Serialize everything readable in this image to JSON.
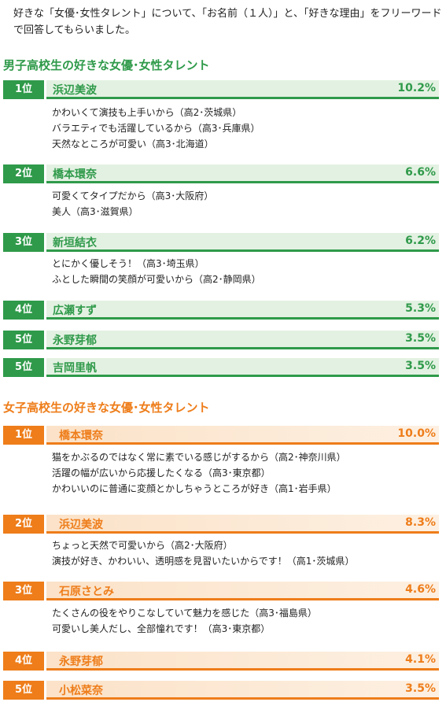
{
  "intro": "好きな「女優･女性タレント」について、「お名前（１人）」と、「好きな理由」をフリーワードで回答してもらいました。",
  "boys": {
    "title": "男子高校生の好きな女優･女性タレント",
    "ranks": [
      {
        "rank": "1位",
        "name": "浜辺美波",
        "percent": "10.2%",
        "comments": [
          "かわいくて演技も上手いから（高2･茨城県）",
          "バラエティでも活躍しているから（高3･兵庫県）",
          "天然なところが可愛い（高3･北海道）"
        ]
      },
      {
        "rank": "2位",
        "name": "橋本環奈",
        "percent": "6.6%",
        "comments": [
          "可愛くてタイプだから（高3･大阪府）",
          "美人（高3･滋賀県）"
        ]
      },
      {
        "rank": "3位",
        "name": "新垣結衣",
        "percent": "6.2%",
        "comments": [
          "とにかく優しそう！（高3･埼玉県）",
          "ふとした瞬間の笑顔が可愛いから（高2･静岡県）"
        ]
      },
      {
        "rank": "4位",
        "name": "広瀬すず",
        "percent": "5.3%",
        "comments": []
      },
      {
        "rank": "5位",
        "name": "永野芽郁",
        "percent": "3.5%",
        "comments": []
      },
      {
        "rank": "5位",
        "name": "吉岡里帆",
        "percent": "3.5%",
        "comments": []
      }
    ]
  },
  "girls": {
    "title": "女子高校生の好きな女優･女性タレント",
    "ranks": [
      {
        "rank": "1位",
        "name": "橋本環奈",
        "percent": "10.0%",
        "comments": [
          "猫をかぶるのではなく常に素でいる感じがするから（高2･神奈川県）",
          "活躍の幅が広いから応援したくなる（高3･東京都）",
          "かわいいのに普通に変顔とかしちゃうところが好き（高1･岩手県）"
        ]
      },
      {
        "rank": "2位",
        "name": "浜辺美波",
        "percent": "8.3%",
        "comments": [
          "ちょっと天然で可愛いから（高2･大阪府）",
          "演技が好き、かわいい、透明感を見習いたいからです！（高1･茨城県）"
        ]
      },
      {
        "rank": "3位",
        "name": "石原さとみ",
        "percent": "4.6%",
        "comments": [
          "たくさんの役をやりこなしていて魅力を感じた（高3･福島県）",
          "可愛いし美人だし、全部憧れです！（高3･東京都）"
        ]
      },
      {
        "rank": "4位",
        "name": "永野芽郁",
        "percent": "4.1%",
        "comments": []
      },
      {
        "rank": "5位",
        "name": "小松菜奈",
        "percent": "3.5%",
        "comments": []
      }
    ]
  }
}
